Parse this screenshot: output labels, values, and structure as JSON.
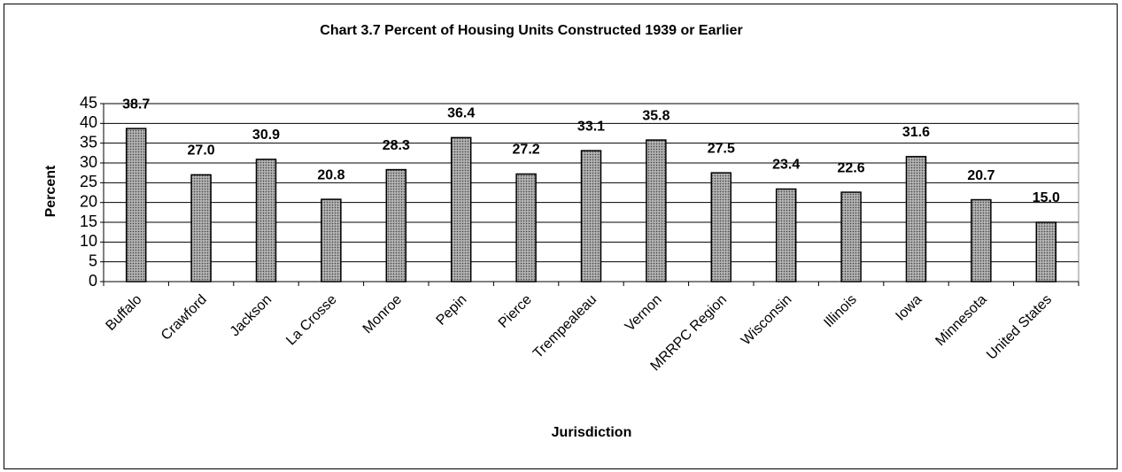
{
  "chart_data": {
    "type": "bar",
    "title": "Chart 3.7  Percent of Housing Units Constructed 1939 or Earlier",
    "x_label": "Jurisdiction",
    "y_label": "Percent",
    "categories": [
      "Buffalo",
      "Crawford",
      "Jackson",
      "La Crosse",
      "Monroe",
      "Pepin",
      "Pierce",
      "Trempealeau",
      "Vernon",
      "MRRPC Region",
      "Wisconsin",
      "Illinois",
      "Iowa",
      "Minnesota",
      "United States"
    ],
    "values": [
      38.7,
      27.0,
      30.9,
      20.8,
      28.3,
      36.4,
      27.2,
      33.1,
      35.8,
      27.5,
      23.4,
      22.6,
      31.6,
      20.7,
      15.0
    ],
    "value_labels": [
      "38.7",
      "27.0",
      "30.9",
      "20.8",
      "28.3",
      "36.4",
      "27.2",
      "33.1",
      "35.8",
      "27.5",
      "23.4",
      "22.6",
      "31.6",
      "20.7",
      "15.0"
    ],
    "color": "#9a9a9a",
    "ylim": [
      0,
      45
    ],
    "yticks": [
      0,
      5,
      10,
      15,
      20,
      25,
      30,
      35,
      40,
      45
    ],
    "grid": true
  }
}
